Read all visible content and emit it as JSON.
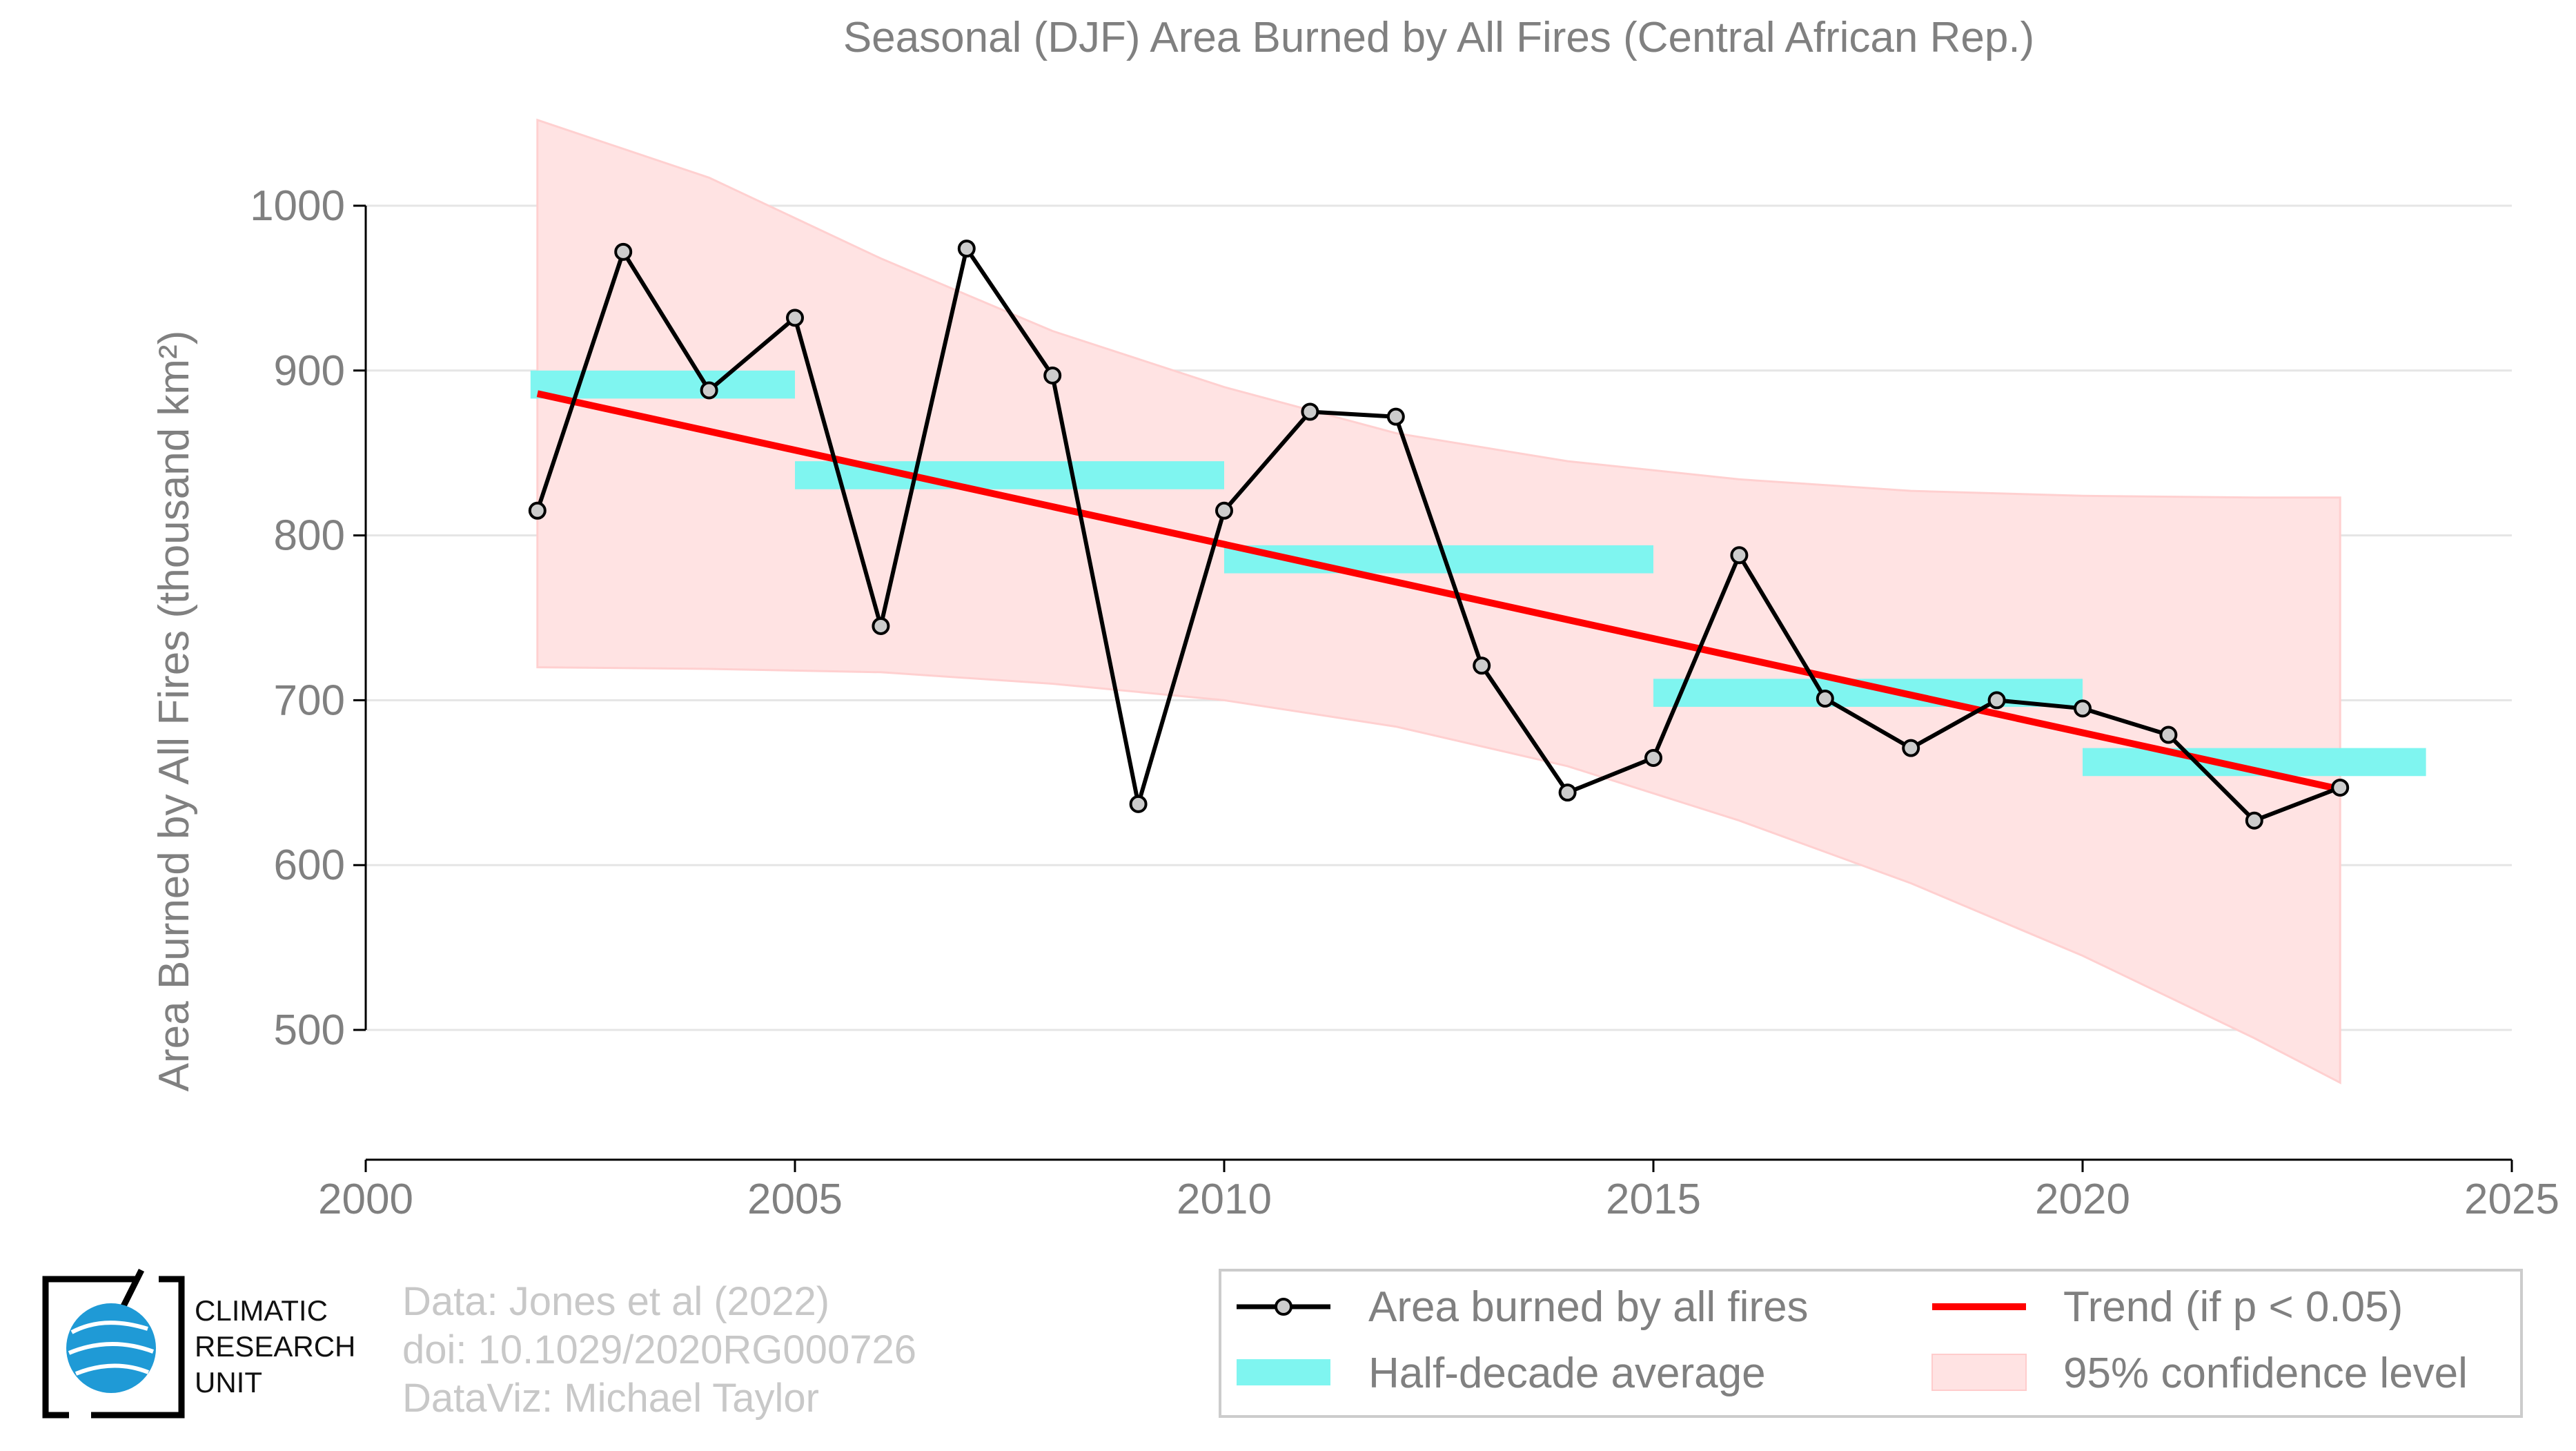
{
  "chart_data": {
    "type": "line",
    "title": "Seasonal (DJF) Area Burned by All Fires (Central African Rep.)",
    "xlabel": "",
    "ylabel": "Area Burned by All Fires (thousand km²)",
    "xlim": [
      2000,
      2025
    ],
    "ylim": [
      500,
      1000
    ],
    "x_ticks": [
      "2000",
      "2005",
      "2010",
      "2015",
      "2020",
      "2025"
    ],
    "y_ticks": [
      "500",
      "600",
      "700",
      "800",
      "900",
      "1000"
    ],
    "grid": "horizontal",
    "series": [
      {
        "name": "Area burned by all fires",
        "color": "#000000",
        "x": [
          2002,
          2003,
          2004,
          2005,
          2006,
          2007,
          2008,
          2009,
          2010,
          2011,
          2012,
          2013,
          2014,
          2015,
          2016,
          2017,
          2018,
          2019,
          2020,
          2021,
          2022,
          2023
        ],
        "y": [
          815,
          972,
          888,
          932,
          745,
          974,
          897,
          637,
          815,
          875,
          872,
          721,
          644,
          665,
          788,
          701,
          671,
          700,
          695,
          679,
          627,
          647
        ]
      }
    ],
    "half_decade_average": {
      "name": "Half-decade average",
      "color": "#7ff5f0",
      "segments": [
        {
          "x_start": 2002,
          "x_end": 2005,
          "y_low": 883,
          "y_high": 900
        },
        {
          "x_start": 2005,
          "x_end": 2010,
          "y_low": 828,
          "y_high": 845
        },
        {
          "x_start": 2010,
          "x_end": 2015,
          "y_low": 777,
          "y_high": 794
        },
        {
          "x_start": 2015,
          "x_end": 2020,
          "y_low": 696,
          "y_high": 713
        },
        {
          "x_start": 2020,
          "x_end": 2024,
          "y_low": 654,
          "y_high": 671
        }
      ]
    },
    "trend": {
      "name": "Trend (if p < 0.05)",
      "color": "#ff0000",
      "x": [
        2002,
        2023
      ],
      "y": [
        886,
        646
      ]
    },
    "confidence_band": {
      "name": "95% confidence level",
      "color": "#ffe3e3",
      "x": [
        2002,
        2004,
        2006,
        2008,
        2010,
        2012,
        2014,
        2016,
        2018,
        2020,
        2022,
        2023
      ],
      "upper": [
        1052,
        1017,
        968,
        924,
        890,
        862,
        845,
        834,
        827,
        824,
        823,
        823
      ],
      "lower": [
        720,
        719,
        717,
        710,
        700,
        684,
        660,
        627,
        589,
        545,
        495,
        468
      ]
    },
    "legend": {
      "placement": "bottom-right",
      "items": [
        "Area burned by all fires",
        "Trend (if p < 0.05)",
        "Half-decade average",
        "95% confidence level"
      ]
    }
  },
  "footer": {
    "logo_lines": [
      "CLIMATIC",
      "RESEARCH",
      "UNIT"
    ],
    "credits": [
      "Data: Jones et al (2022)",
      "doi: 10.1029/2020RG000726",
      "DataViz: Michael Taylor"
    ]
  }
}
